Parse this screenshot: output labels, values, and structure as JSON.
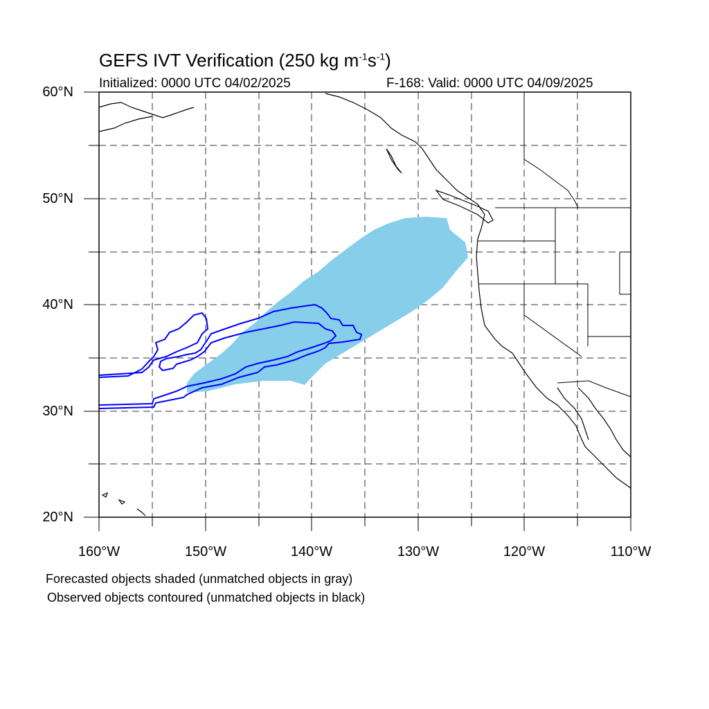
{
  "title": {
    "main": "GEFS IVT Verification (250 kg m",
    "sup1": "-1",
    "mid": "s",
    "sup2": "-1",
    "end": ")"
  },
  "initialized": "Initialized: 0000 UTC 04/02/2025",
  "valid": "F-168: Valid: 0000 UTC 04/09/2025",
  "map": {
    "lat_range": [
      20,
      60
    ],
    "lon_range": [
      -160,
      -110
    ],
    "lat_labels": [
      "60°N",
      "50°N",
      "40°N",
      "30°N",
      "20°N"
    ],
    "lon_labels": [
      "160°W",
      "150°W",
      "140°W",
      "130°W",
      "120°W",
      "110°W"
    ],
    "grid": "dashed every 5 degrees",
    "forecast_color": "#87ceeb",
    "observed_color": "#0000ff"
  },
  "footer": {
    "line1": "Forecasted objects shaded (unmatched objects in gray)",
    "line2": "Observed objects contoured (unmatched objects in black)"
  }
}
